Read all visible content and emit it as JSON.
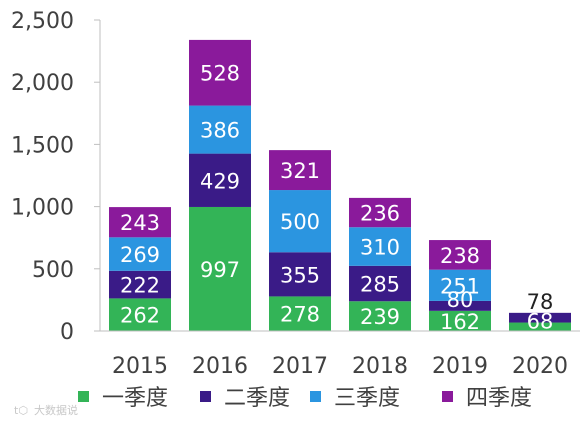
{
  "chart_data": {
    "type": "bar",
    "stacked": true,
    "categories": [
      "2015",
      "2016",
      "2017",
      "2018",
      "2019",
      "2020"
    ],
    "series": [
      {
        "name": "一季度",
        "color": "#33b457",
        "values": [
          262,
          997,
          278,
          239,
          162,
          68
        ]
      },
      {
        "name": "二季度",
        "color": "#3a1b87",
        "values": [
          222,
          429,
          355,
          285,
          80,
          78
        ]
      },
      {
        "name": "三季度",
        "color": "#2b95e0",
        "values": [
          269,
          386,
          500,
          310,
          251,
          null
        ]
      },
      {
        "name": "四季度",
        "color": "#8a1a9b",
        "values": [
          243,
          528,
          321,
          236,
          238,
          null
        ]
      }
    ],
    "ylim": [
      0,
      2500
    ],
    "yticks": [
      "0",
      "500",
      "1,000",
      "1,500",
      "2,000",
      "2,500"
    ],
    "ytick_values": [
      0,
      500,
      1000,
      1500,
      2000,
      2500
    ],
    "grid": false,
    "legend_position": "bottom"
  },
  "watermark": "大数据说"
}
